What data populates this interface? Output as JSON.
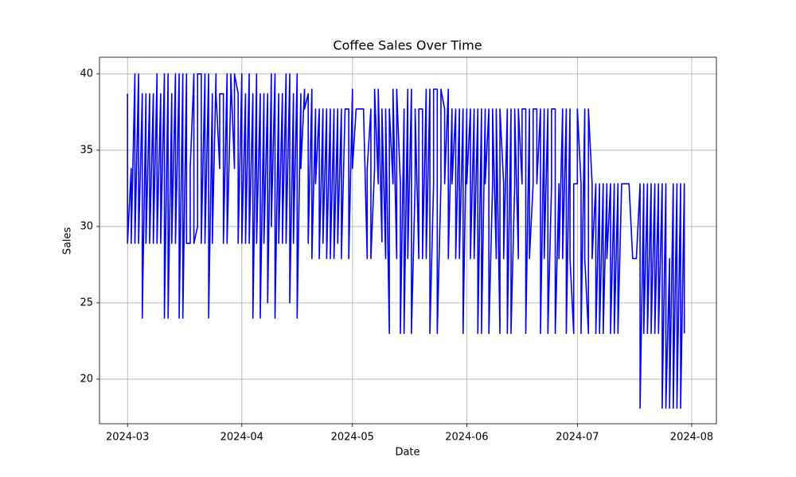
{
  "chart_data": {
    "type": "line",
    "title": "Coffee Sales Over Time",
    "x_label": "Date",
    "y_label": "Sales",
    "grid": true,
    "xlim": [
      -7.6,
      159.7
    ],
    "xticks": [
      {
        "value": 0,
        "label": "2024-03"
      },
      {
        "value": 31,
        "label": "2024-04"
      },
      {
        "value": 61,
        "label": "2024-05"
      },
      {
        "value": 92,
        "label": "2024-06"
      },
      {
        "value": 122,
        "label": "2024-07"
      },
      {
        "value": 153,
        "label": "2024-08"
      }
    ],
    "ylim": [
      17.08,
      41.09
    ],
    "yticks": [
      20,
      25,
      30,
      35,
      40
    ],
    "x": [
      0,
      0,
      1,
      1,
      2,
      2,
      3,
      3,
      4,
      4,
      5,
      5,
      6,
      6,
      7,
      7,
      8,
      8,
      9,
      9,
      10,
      10,
      11,
      11,
      12,
      12,
      13,
      13,
      14,
      14,
      15,
      15,
      16,
      16,
      17,
      17,
      18,
      18,
      19,
      19,
      20,
      20,
      21,
      21,
      22,
      22,
      23,
      23,
      24,
      24,
      25,
      25,
      26,
      26,
      27,
      27,
      28,
      28,
      29,
      29,
      30,
      30,
      31,
      31,
      32,
      32,
      33,
      33,
      34,
      34,
      35,
      35,
      36,
      36,
      37,
      37,
      38,
      38,
      39,
      39,
      40,
      40,
      41,
      41,
      42,
      42,
      43,
      43,
      44,
      44,
      45,
      45,
      46,
      46,
      47,
      47,
      48,
      48,
      49,
      49,
      50,
      50,
      51,
      51,
      52,
      52,
      53,
      53,
      54,
      54,
      55,
      55,
      56,
      56,
      57,
      57,
      58,
      58,
      59,
      59,
      60,
      60,
      61,
      61,
      62,
      62,
      63,
      63,
      64,
      64,
      65,
      65,
      66,
      66,
      67,
      67,
      68,
      68,
      69,
      69,
      70,
      70,
      71,
      71,
      72,
      72,
      73,
      73,
      74,
      74,
      75,
      75,
      76,
      76,
      77,
      77,
      78,
      78,
      79,
      79,
      80,
      80,
      81,
      81,
      82,
      82,
      83,
      83,
      84,
      84,
      85,
      85,
      86,
      86,
      87,
      87,
      88,
      88,
      89,
      89,
      90,
      90,
      91,
      91,
      92,
      92,
      93,
      93,
      94,
      94,
      95,
      95,
      96,
      96,
      97,
      97,
      98,
      98,
      99,
      99,
      100,
      100,
      101,
      101,
      102,
      102,
      103,
      103,
      104,
      104,
      105,
      105,
      106,
      106,
      107,
      107,
      108,
      108,
      109,
      109,
      110,
      110,
      111,
      111,
      112,
      112,
      113,
      113,
      114,
      114,
      115,
      115,
      116,
      116,
      117,
      117,
      118,
      118,
      119,
      119,
      120,
      120,
      121,
      121,
      122,
      122,
      123,
      123,
      124,
      124,
      125,
      125,
      126,
      126,
      127,
      127,
      128,
      128,
      129,
      129,
      130,
      130,
      131,
      131,
      132,
      132,
      133,
      133,
      134,
      134,
      135,
      135,
      136,
      136,
      137,
      137,
      138,
      138,
      139,
      139,
      140,
      140,
      141,
      141,
      142,
      142,
      143,
      143,
      144,
      144,
      145,
      145,
      146,
      146,
      147,
      147,
      148,
      148,
      149,
      149,
      150,
      150,
      151,
      151
    ],
    "series": [
      {
        "name": "Sales",
        "color": "#0000ff",
        "values": [
          38.7,
          28.9,
          33.8,
          28.9,
          40,
          28.9,
          40,
          28.9,
          38.7,
          24,
          38.7,
          28.9,
          38.7,
          28.9,
          38.7,
          28.9,
          40,
          28.9,
          38.7,
          28.9,
          40,
          24,
          40,
          24,
          38.7,
          28.9,
          40,
          28.9,
          40,
          24,
          40,
          24,
          40,
          28.9,
          28.9,
          33.8,
          40,
          28.9,
          30,
          40,
          40,
          28.9,
          40,
          28.9,
          40,
          24,
          38.7,
          28.9,
          40,
          38.7,
          33.8,
          38.7,
          38.7,
          28.9,
          40,
          28.9,
          38.7,
          40,
          33.8,
          40,
          38.7,
          28.9,
          40,
          28.9,
          38.7,
          28.9,
          40,
          28.9,
          38.7,
          24,
          40,
          28.9,
          38.7,
          24,
          38.7,
          28.9,
          38.7,
          25,
          40,
          30,
          40,
          24,
          38.7,
          28.9,
          38.7,
          28.9,
          40,
          28.9,
          40,
          25,
          38.7,
          28.9,
          40,
          24,
          38.7,
          33.8,
          39,
          37.7,
          38.7,
          28.9,
          39,
          27.9,
          37.7,
          32.8,
          37.7,
          27.9,
          37.7,
          28.9,
          37.7,
          27.9,
          37.7,
          27.9,
          37.7,
          27.9,
          37.7,
          28.9,
          37.7,
          27.9,
          37.7,
          37.7,
          37.7,
          27.9,
          39,
          33.8,
          37.7,
          37.7,
          37.7,
          37.7,
          37.7,
          37.7,
          27.9,
          33.8,
          37.7,
          27.9,
          33.8,
          39,
          32.8,
          39,
          29,
          37.7,
          27.9,
          37.7,
          23,
          37.7,
          32.8,
          39,
          27.9,
          39,
          32.8,
          23,
          37.7,
          23,
          39,
          27.9,
          39,
          23,
          32.8,
          37.7,
          27.9,
          37.7,
          37.7,
          27.9,
          39,
          27.9,
          39,
          23,
          32.8,
          39,
          39,
          23,
          32.8,
          39,
          37.7,
          32.8,
          39,
          27.9,
          37.7,
          32.8,
          37.7,
          27.9,
          37.7,
          27.9,
          37.7,
          23,
          37.7,
          32.8,
          37.7,
          27.9,
          37.7,
          27.9,
          37.7,
          23,
          37.7,
          23,
          37.7,
          32.8,
          37.7,
          23,
          32.8,
          37.7,
          27.9,
          37.7,
          23,
          37.7,
          32.8,
          27.9,
          37.7,
          23,
          37.7,
          23,
          32.8,
          37.7,
          27.9,
          37.7,
          32.8,
          37.7,
          37.7,
          23,
          37.7,
          27.9,
          32.8,
          37.7,
          37.7,
          32.8,
          37.7,
          23,
          37.7,
          27.9,
          37.7,
          23,
          32.8,
          37.7,
          37.7,
          23,
          32.8,
          27.9,
          37.7,
          27.9,
          37.7,
          23,
          37.7,
          27.9,
          23,
          32.8,
          32.8,
          37.7,
          32.8,
          23,
          37.7,
          27.9,
          23,
          37.7,
          32.8,
          27.9,
          32.8,
          23,
          32.8,
          23,
          32.8,
          23,
          32.8,
          27.9,
          32.8,
          23,
          32.8,
          23,
          32.8,
          23,
          32.8,
          32.8,
          32.8,
          32.8,
          32.8,
          32.8,
          27.9,
          27.9,
          27.9,
          27.9,
          32.8,
          18.1,
          32.8,
          23,
          32.8,
          23,
          32.8,
          23,
          32.8,
          23,
          32.8,
          23,
          32.8,
          18.1,
          32.8,
          18.1,
          27.9,
          18.1,
          32.8,
          18.1,
          32.8,
          18.1,
          32.8,
          18.1,
          32.8,
          23
        ]
      }
    ]
  }
}
